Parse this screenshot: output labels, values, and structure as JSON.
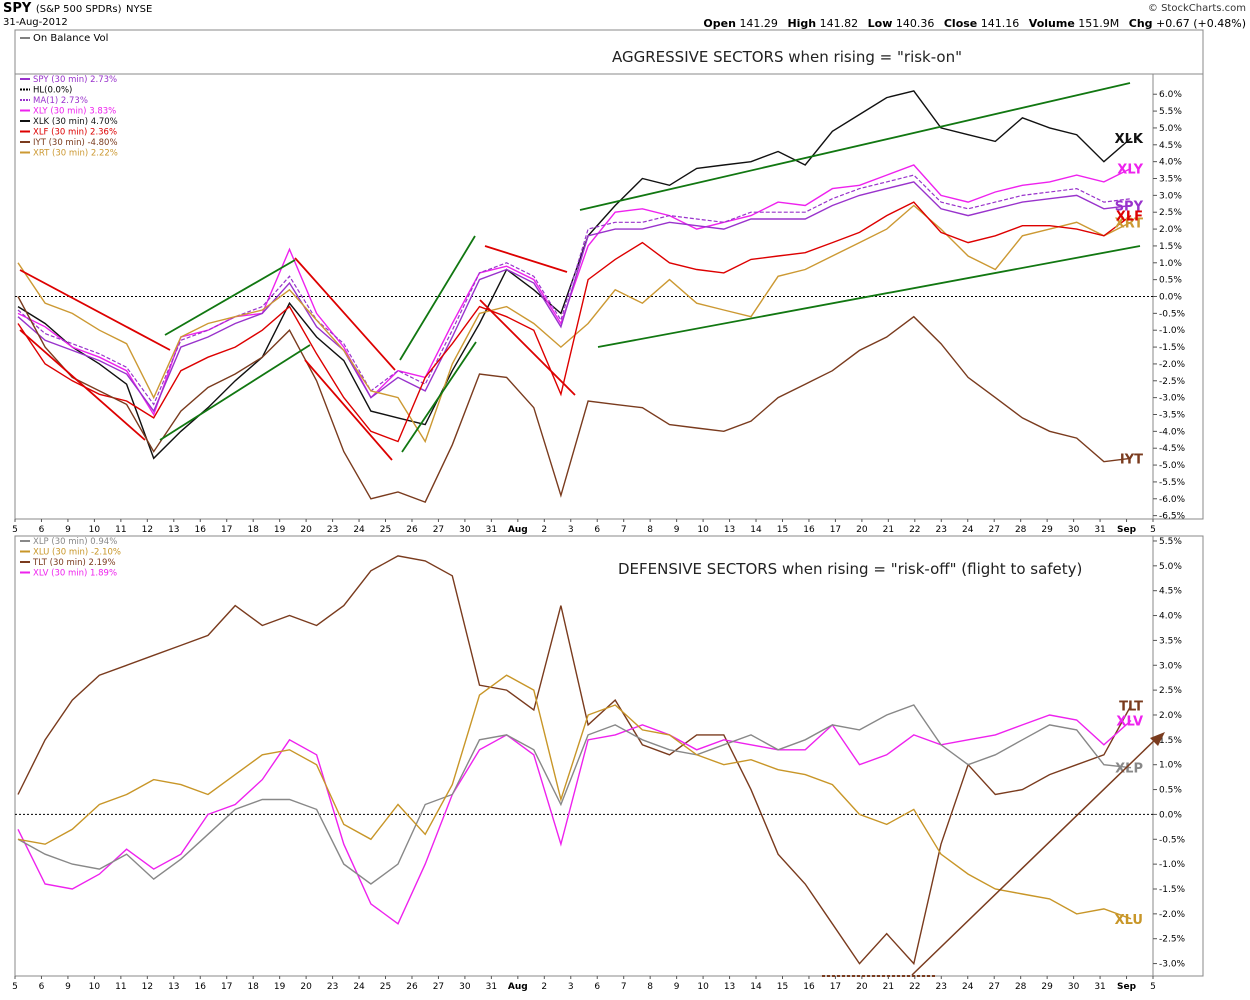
{
  "header": {
    "symbol": "SPY",
    "name": "(S&P 500 SPDRs)",
    "exchange": "NYSE",
    "date": "31-Aug-2012",
    "brand": "© StockCharts.com",
    "ohlc": [
      {
        "label": "Open",
        "value": "141.29"
      },
      {
        "label": "High",
        "value": "141.82"
      },
      {
        "label": "Low",
        "value": "140.36"
      },
      {
        "label": "Close",
        "value": "141.16"
      },
      {
        "label": "Volume",
        "value": "151.9M"
      },
      {
        "label": "Chg",
        "value": "+0.67 (+0.48%)"
      }
    ]
  },
  "obv_label": "On Balance Vol",
  "colors": {
    "SPY": "#9933cc",
    "HL": "#000000",
    "MA": "#9933cc",
    "XLY": "#ee22ee",
    "XLK": "#111111",
    "XLF": "#dd0000",
    "IYT": "#7a3b1e",
    "XRT": "#cc9933",
    "XLP": "#888888",
    "XLU": "#c89628",
    "TLT": "#7a3b1e",
    "XLV": "#ee22ee",
    "trend_green": "#117711",
    "trend_red": "#dd0000",
    "trend_brown": "#7a3b1e"
  },
  "x_axis_labels": [
    "5",
    "6",
    "9",
    "10",
    "11",
    "12",
    "13",
    "16",
    "17",
    "18",
    "19",
    "20",
    "23",
    "24",
    "25",
    "26",
    "27",
    "30",
    "31",
    "Aug",
    "2",
    "3",
    "6",
    "7",
    "8",
    "9",
    "10",
    "13",
    "14",
    "15",
    "16",
    "17",
    "20",
    "21",
    "22",
    "23",
    "24",
    "27",
    "28",
    "29",
    "30",
    "31",
    "Sep",
    "5"
  ],
  "chart_data": [
    {
      "type": "line",
      "title": "AGGRESSIVE SECTORS when rising = \"risk-on\"",
      "ylim": [
        -6.5,
        6.5
      ],
      "yticks": [
        "6.0%",
        "5.5%",
        "5.0%",
        "4.5%",
        "4.0%",
        "3.5%",
        "3.0%",
        "2.5%",
        "2.0%",
        "1.5%",
        "1.0%",
        "0.5%",
        "0.0%",
        "-0.5%",
        "-1.0%",
        "-1.5%",
        "-2.0%",
        "-2.5%",
        "-3.0%",
        "-3.5%",
        "-4.0%",
        "-4.5%",
        "-5.0%",
        "-5.5%",
        "-6.0%",
        "-6.5%"
      ],
      "legend": [
        "SPY (30 min) 2.73%",
        "HL(0.0%)",
        "MA(1) 2.73%",
        "XLY (30 min) 3.83%",
        "XLK (30 min) 4.70%",
        "XLF (30 min) 2.36%",
        "IYT (30 min) -4.80%",
        "XRT (30 min) 2.22%"
      ],
      "end_labels": [
        "XLK",
        "XLY",
        "SPY",
        "XRT",
        "XLF",
        "IYT"
      ],
      "series": [
        {
          "name": "XLK",
          "values": [
            -0.3,
            -0.8,
            -1.5,
            -2.0,
            -2.6,
            -4.8,
            -4.0,
            -3.3,
            -2.5,
            -1.8,
            -0.2,
            -1.2,
            -1.9,
            -3.4,
            -3.6,
            -3.8,
            -2.2,
            -0.8,
            0.8,
            0.2,
            -0.5,
            1.8,
            2.7,
            3.5,
            3.3,
            3.8,
            3.9,
            4.0,
            4.3,
            3.9,
            4.9,
            5.4,
            5.9,
            6.1,
            5.0,
            4.8,
            4.6,
            5.3,
            5.0,
            4.8,
            4.0,
            4.7
          ]
        },
        {
          "name": "XLY",
          "values": [
            -0.5,
            -0.9,
            -1.5,
            -1.8,
            -2.2,
            -3.5,
            -1.2,
            -1.0,
            -0.6,
            -0.5,
            1.4,
            -0.5,
            -1.5,
            -3.0,
            -2.2,
            -2.4,
            -0.8,
            0.7,
            0.9,
            0.5,
            -0.8,
            1.5,
            2.5,
            2.6,
            2.4,
            2.0,
            2.2,
            2.4,
            2.8,
            2.7,
            3.2,
            3.3,
            3.6,
            3.9,
            3.0,
            2.8,
            3.1,
            3.3,
            3.4,
            3.6,
            3.4,
            3.8
          ]
        },
        {
          "name": "SPY",
          "values": [
            -0.6,
            -1.3,
            -1.6,
            -1.9,
            -2.3,
            -3.4,
            -1.5,
            -1.2,
            -0.8,
            -0.5,
            0.4,
            -0.9,
            -1.6,
            -3.0,
            -2.4,
            -2.8,
            -1.2,
            0.5,
            0.8,
            0.4,
            -0.9,
            1.8,
            2.0,
            2.0,
            2.2,
            2.1,
            2.0,
            2.3,
            2.3,
            2.3,
            2.7,
            3.0,
            3.2,
            3.4,
            2.6,
            2.4,
            2.6,
            2.8,
            2.9,
            3.0,
            2.6,
            2.7
          ]
        },
        {
          "name": "XRT",
          "values": [
            1.0,
            -0.2,
            -0.5,
            -1.0,
            -1.4,
            -3.0,
            -1.2,
            -0.8,
            -0.6,
            -0.4,
            0.2,
            -0.7,
            -1.6,
            -2.8,
            -3.0,
            -4.3,
            -2.0,
            -0.5,
            -0.3,
            -0.8,
            -1.5,
            -0.8,
            0.2,
            -0.2,
            0.5,
            -0.2,
            -0.4,
            -0.6,
            0.6,
            0.8,
            1.2,
            1.6,
            2.0,
            2.7,
            2.0,
            1.2,
            0.8,
            1.8,
            2.0,
            2.2,
            1.8,
            2.2
          ]
        },
        {
          "name": "XLF",
          "values": [
            -0.8,
            -2.0,
            -2.5,
            -2.9,
            -3.1,
            -3.6,
            -2.2,
            -1.8,
            -1.5,
            -1.0,
            -0.3,
            -1.7,
            -3.0,
            -4.0,
            -4.3,
            -2.4,
            -1.4,
            -0.3,
            -0.6,
            -1.0,
            -2.9,
            0.5,
            1.1,
            1.6,
            1.0,
            0.8,
            0.7,
            1.1,
            1.2,
            1.3,
            1.6,
            1.9,
            2.4,
            2.8,
            1.9,
            1.6,
            1.8,
            2.1,
            2.1,
            2.0,
            1.8,
            2.4
          ]
        },
        {
          "name": "IYT",
          "values": [
            0.0,
            -1.5,
            -2.4,
            -2.8,
            -3.2,
            -4.6,
            -3.4,
            -2.7,
            -2.3,
            -1.8,
            -1.0,
            -2.5,
            -4.6,
            -6.0,
            -5.8,
            -6.1,
            -4.4,
            -2.3,
            -2.4,
            -3.3,
            -5.9,
            -3.1,
            -3.2,
            -3.3,
            -3.8,
            -3.9,
            -4.0,
            -3.7,
            -3.0,
            -2.6,
            -2.2,
            -1.6,
            -1.2,
            -0.6,
            -1.4,
            -2.4,
            -3.0,
            -3.6,
            -4.0,
            -4.2,
            -4.9,
            -4.8
          ]
        }
      ],
      "annotations": [
        "channel and trend lines"
      ]
    },
    {
      "type": "line",
      "title": "DEFENSIVE SECTORS when rising = \"risk-off\" (flight to safety)",
      "ylim": [
        -3.0,
        5.5
      ],
      "yticks": [
        "5.5%",
        "5.0%",
        "4.5%",
        "4.0%",
        "3.5%",
        "3.0%",
        "2.5%",
        "2.0%",
        "1.5%",
        "1.0%",
        "0.5%",
        "0.0%",
        "-0.5%",
        "-1.0%",
        "-1.5%",
        "-2.0%",
        "-2.5%",
        "-3.0%"
      ],
      "legend": [
        "XLP (30 min) 0.94%",
        "XLU (30 min) -2.10%",
        "TLT (30 min) 2.19%",
        "XLV (30 min) 1.89%"
      ],
      "end_labels": [
        "TLT",
        "XLV",
        "XLP",
        "XLU"
      ],
      "series": [
        {
          "name": "TLT",
          "values": [
            0.4,
            1.5,
            2.3,
            2.8,
            3.0,
            3.2,
            3.4,
            3.6,
            4.2,
            3.8,
            4.0,
            3.8,
            4.2,
            4.9,
            5.2,
            5.1,
            4.8,
            2.6,
            2.5,
            2.1,
            4.2,
            1.8,
            2.3,
            1.4,
            1.2,
            1.6,
            1.6,
            0.5,
            -0.8,
            -1.4,
            -2.2,
            -3.0,
            -2.4,
            -3.0,
            -0.6,
            1.0,
            0.4,
            0.5,
            0.8,
            1.0,
            1.2,
            2.19
          ]
        },
        {
          "name": "XLV",
          "values": [
            -0.3,
            -1.4,
            -1.5,
            -1.2,
            -0.7,
            -1.1,
            -0.8,
            0.0,
            0.2,
            0.7,
            1.5,
            1.2,
            -0.6,
            -1.8,
            -2.2,
            -1.0,
            0.4,
            1.3,
            1.6,
            1.2,
            -0.6,
            1.5,
            1.6,
            1.8,
            1.6,
            1.3,
            1.5,
            1.4,
            1.3,
            1.3,
            1.8,
            1.0,
            1.2,
            1.6,
            1.4,
            1.5,
            1.6,
            1.8,
            2.0,
            1.9,
            1.4,
            1.89
          ]
        },
        {
          "name": "XLP",
          "values": [
            -0.5,
            -0.8,
            -1.0,
            -1.1,
            -0.8,
            -1.3,
            -0.9,
            -0.4,
            0.1,
            0.3,
            0.3,
            0.1,
            -1.0,
            -1.4,
            -1.0,
            0.2,
            0.4,
            1.5,
            1.6,
            1.3,
            0.2,
            1.6,
            1.8,
            1.5,
            1.3,
            1.2,
            1.4,
            1.6,
            1.3,
            1.5,
            1.8,
            1.7,
            2.0,
            2.2,
            1.4,
            1.0,
            1.2,
            1.5,
            1.8,
            1.7,
            1.0,
            0.94
          ]
        },
        {
          "name": "XLU",
          "values": [
            -0.5,
            -0.6,
            -0.3,
            0.2,
            0.4,
            0.7,
            0.6,
            0.4,
            0.8,
            1.2,
            1.3,
            1.0,
            -0.2,
            -0.5,
            0.2,
            -0.4,
            0.6,
            2.4,
            2.8,
            2.5,
            0.3,
            2.0,
            2.2,
            1.7,
            1.6,
            1.2,
            1.0,
            1.1,
            0.9,
            0.8,
            0.6,
            0.0,
            -0.2,
            0.1,
            -0.8,
            -1.2,
            -1.5,
            -1.6,
            -1.7,
            -2.0,
            -1.9,
            -2.1
          ]
        }
      ],
      "annotations": [
        "double bottom dashed line",
        "rising trend line"
      ]
    }
  ]
}
